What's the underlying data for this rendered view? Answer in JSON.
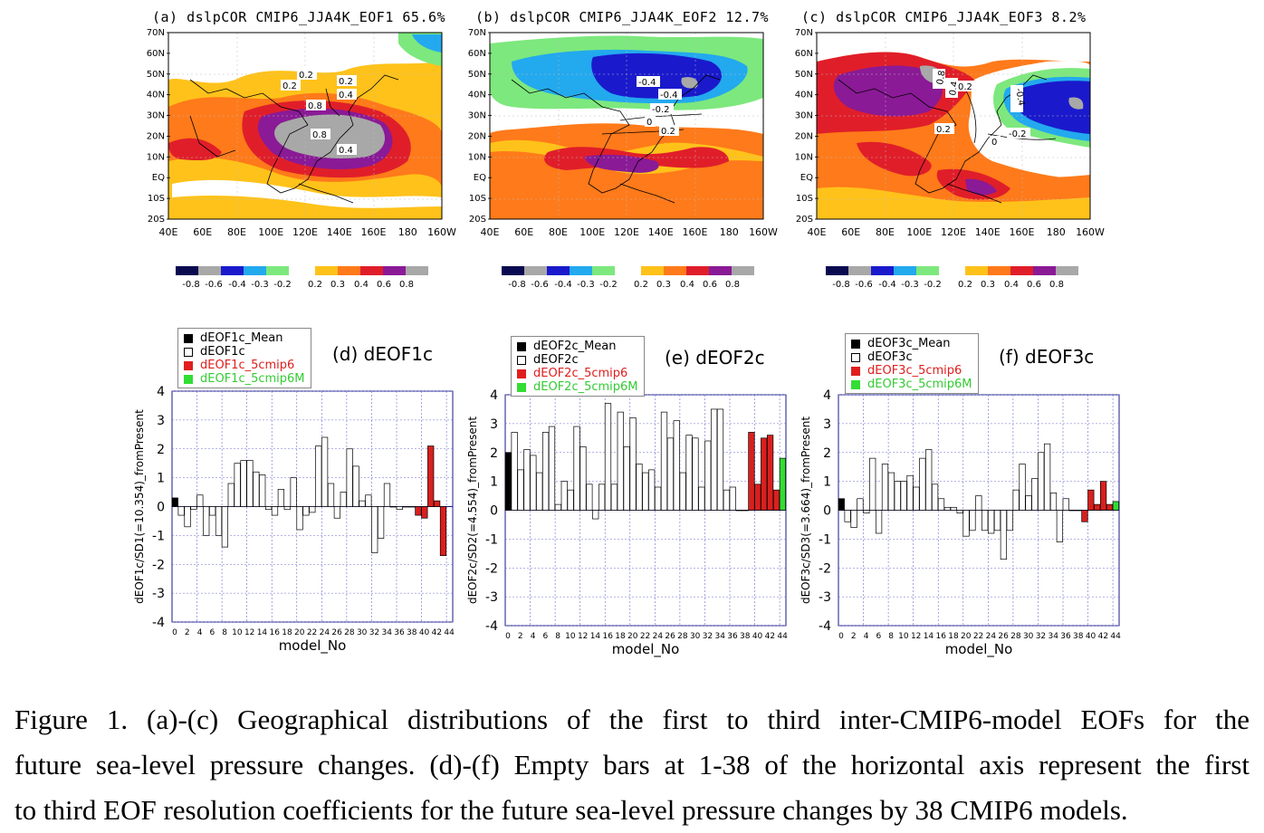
{
  "maps": [
    {
      "title": "(a)  dslpCOR  CMIP6_JJA4K_EOF1  65.6%"
    },
    {
      "title": "(b)  dslpCOR  CMIP6_JJA4K_EOF2  12.7%"
    },
    {
      "title": "(c)  dslpCOR  CMIP6_JJA4K_EOF3   8.2%"
    }
  ],
  "map_axes": {
    "lat_labels": [
      "70N",
      "60N",
      "50N",
      "40N",
      "30N",
      "20N",
      "10N",
      "EQ",
      "10S",
      "20S"
    ],
    "lon_labels": [
      "40E",
      "60E",
      "80E",
      "100E",
      "120E",
      "140E",
      "160E",
      "180",
      "160W"
    ]
  },
  "map_contour_labels": [
    [
      "0.2",
      "0.2",
      "0.2",
      "0.4",
      "0.8",
      "0.8",
      "0.4"
    ],
    [
      "-0.4",
      "-0.4",
      "-0.2",
      "0",
      "0.2"
    ],
    [
      "0.8",
      "0.4",
      "0.2",
      "-0.4",
      "0.2",
      "-0.2",
      "0"
    ]
  ],
  "colorbar": {
    "labels": [
      "-0.8",
      "-0.6",
      "-0.4",
      "-0.3",
      "-0.2",
      "0.2",
      "0.3",
      "0.4",
      "0.6",
      "0.8"
    ],
    "neg_colors": [
      "#0a0a50",
      "#a8a8a8",
      "#1a1acc",
      "#23a9ee",
      "#7de87d"
    ],
    "pos_colors": [
      "#ffc21a",
      "#ff7a1a",
      "#e01e2a",
      "#8a1a96",
      "#a8a8a8"
    ]
  },
  "bar_panels": [
    {
      "title": "(d)  dEOF1c",
      "ylabel": "dEOF1c/SD1(=10.354)_fromPresent",
      "xlabel": "model_No",
      "legend": [
        "dEOF1c_Mean",
        "dEOF1c",
        "dEOF1c_5cmip6",
        "dEOF1c_5cmip6M"
      ]
    },
    {
      "title": "(e)  dEOF2c",
      "ylabel": "dEOF2c/SD2(=4.554)_fromPresent",
      "xlabel": "model_No",
      "legend": [
        "dEOF2c_Mean",
        "dEOF2c",
        "dEOF2c_5cmip6",
        "dEOF2c_5cmip6M"
      ]
    },
    {
      "title": "(f)  dEOF3c",
      "ylabel": "dEOF3c/SD3(=3.664)_fromPresent",
      "xlabel": "model_No",
      "legend": [
        "dEOF3c_Mean",
        "dEOF3c",
        "dEOF3c_5cmip6",
        "dEOF3c_5cmip6M"
      ]
    }
  ],
  "legend_colors": [
    "#000000",
    "#ffffff",
    "#e01e1e",
    "#33dd33"
  ],
  "chart_data": [
    {
      "type": "bar",
      "title": "(d)  dEOF1c",
      "xlabel": "model_No",
      "ylabel": "dEOF1c/SD1(=10.354)_fromPresent",
      "ylim": [
        -4,
        4
      ],
      "xlim": [
        0,
        45
      ],
      "xticks": [
        0,
        2,
        4,
        6,
        8,
        10,
        12,
        14,
        16,
        18,
        20,
        22,
        24,
        26,
        28,
        30,
        32,
        34,
        36,
        38,
        40,
        42,
        44
      ],
      "yticks": [
        -4,
        -3,
        -2,
        -1,
        0,
        1,
        2,
        3,
        4
      ],
      "series": [
        {
          "name": "dEOF1c_Mean",
          "x": [
            0
          ],
          "values": [
            0.3
          ]
        },
        {
          "name": "dEOF1c",
          "x": [
            1,
            2,
            3,
            4,
            5,
            6,
            7,
            8,
            9,
            10,
            11,
            12,
            13,
            14,
            15,
            16,
            17,
            18,
            19,
            20,
            21,
            22,
            23,
            24,
            25,
            26,
            27,
            28,
            29,
            30,
            31,
            32,
            33,
            34,
            35,
            36,
            37,
            38
          ],
          "values": [
            -0.3,
            -0.7,
            -0.1,
            0.4,
            -1.0,
            -0.3,
            -1.0,
            -1.4,
            0.8,
            1.5,
            1.6,
            1.6,
            1.2,
            1.1,
            -0.1,
            -0.3,
            0.6,
            -0.1,
            1.0,
            -0.8,
            -0.3,
            -0.2,
            2.1,
            2.4,
            0.8,
            -0.4,
            0.5,
            2.0,
            1.4,
            0.2,
            0.4,
            -1.6,
            -1.1,
            0.8,
            0.0,
            -0.1,
            0.0,
            0.0
          ]
        },
        {
          "name": "dEOF1c_5cmip6",
          "x": [
            39,
            40,
            41,
            42,
            43
          ],
          "values": [
            -0.3,
            -0.4,
            2.1,
            0.2,
            -1.7
          ]
        }
      ]
    },
    {
      "type": "bar",
      "title": "(e)  dEOF2c",
      "xlabel": "model_No",
      "ylabel": "dEOF2c/SD2(=4.554)_fromPresent",
      "ylim": [
        -4,
        4
      ],
      "xlim": [
        0,
        45
      ],
      "xticks": [
        0,
        2,
        4,
        6,
        8,
        10,
        12,
        14,
        16,
        18,
        20,
        22,
        24,
        26,
        28,
        30,
        32,
        34,
        36,
        38,
        40,
        42,
        44
      ],
      "yticks": [
        -4,
        -3,
        -2,
        -1,
        0,
        1,
        2,
        3,
        4
      ],
      "series": [
        {
          "name": "dEOF2c_Mean",
          "x": [
            0
          ],
          "values": [
            2.0
          ]
        },
        {
          "name": "dEOF2c",
          "x": [
            1,
            2,
            3,
            4,
            5,
            6,
            7,
            8,
            9,
            10,
            11,
            12,
            13,
            14,
            15,
            16,
            17,
            18,
            19,
            20,
            21,
            22,
            23,
            24,
            25,
            26,
            27,
            28,
            29,
            30,
            31,
            32,
            33,
            34,
            35,
            36,
            37,
            38
          ],
          "values": [
            2.7,
            1.4,
            2.1,
            1.9,
            1.3,
            2.7,
            2.9,
            0.2,
            1.0,
            0.7,
            2.9,
            2.2,
            0.9,
            -0.3,
            0.9,
            3.7,
            0.9,
            3.4,
            2.2,
            3.2,
            1.6,
            1.3,
            1.4,
            0.8,
            3.4,
            2.5,
            3.1,
            1.3,
            2.6,
            2.5,
            0.8,
            2.4,
            3.5,
            3.5,
            0.7,
            0.8,
            0.0,
            0.0
          ]
        },
        {
          "name": "dEOF2c_5cmip6",
          "x": [
            39,
            40,
            41,
            42,
            43
          ],
          "values": [
            2.7,
            0.9,
            2.5,
            2.6,
            0.7
          ]
        },
        {
          "name": "dEOF2c_5cmip6M",
          "x": [
            44
          ],
          "values": [
            1.8
          ]
        }
      ]
    },
    {
      "type": "bar",
      "title": "(f)  dEOF3c",
      "xlabel": "model_No",
      "ylabel": "dEOF3c/SD3(=3.664)_fromPresent",
      "ylim": [
        -4,
        4
      ],
      "xlim": [
        0,
        45
      ],
      "xticks": [
        0,
        2,
        4,
        6,
        8,
        10,
        12,
        14,
        16,
        18,
        20,
        22,
        24,
        26,
        28,
        30,
        32,
        34,
        36,
        38,
        40,
        42,
        44
      ],
      "yticks": [
        -4,
        -3,
        -2,
        -1,
        0,
        1,
        2,
        3,
        4
      ],
      "series": [
        {
          "name": "dEOF3c_Mean",
          "x": [
            0
          ],
          "values": [
            0.4
          ]
        },
        {
          "name": "dEOF3c",
          "x": [
            1,
            2,
            3,
            4,
            5,
            6,
            7,
            8,
            9,
            10,
            11,
            12,
            13,
            14,
            15,
            16,
            17,
            18,
            19,
            20,
            21,
            22,
            23,
            24,
            25,
            26,
            27,
            28,
            29,
            30,
            31,
            32,
            33,
            34,
            35,
            36,
            37,
            38
          ],
          "values": [
            -0.4,
            -0.6,
            0.4,
            -0.1,
            1.8,
            -0.8,
            1.6,
            1.3,
            1.0,
            1.0,
            1.2,
            0.8,
            1.8,
            2.1,
            0.9,
            0.4,
            0.1,
            0.1,
            -0.1,
            -0.9,
            -0.7,
            0.5,
            -0.7,
            -0.8,
            -0.7,
            -1.7,
            -0.7,
            0.7,
            1.6,
            0.5,
            1.1,
            2.0,
            2.3,
            0.6,
            -1.1,
            0.4,
            0.0,
            0.0
          ]
        },
        {
          "name": "dEOF3c_5cmip6",
          "x": [
            39,
            40,
            41,
            42,
            43
          ],
          "values": [
            -0.4,
            0.7,
            0.2,
            1.0,
            0.2
          ]
        },
        {
          "name": "dEOF3c_5cmip6M",
          "x": [
            44
          ],
          "values": [
            0.3
          ]
        }
      ]
    }
  ],
  "caption": [
    "Figure 1. (a)-(c) Geographical distributions of the first to third inter-CMIP6-model EOFs for the",
    "future sea-level pressure changes. (d)-(f) Empty bars at 1-38 of the horizontal axis represent the first",
    "to third EOF resolution coefficients for the future sea-level pressure changes by 38 CMIP6 models."
  ]
}
